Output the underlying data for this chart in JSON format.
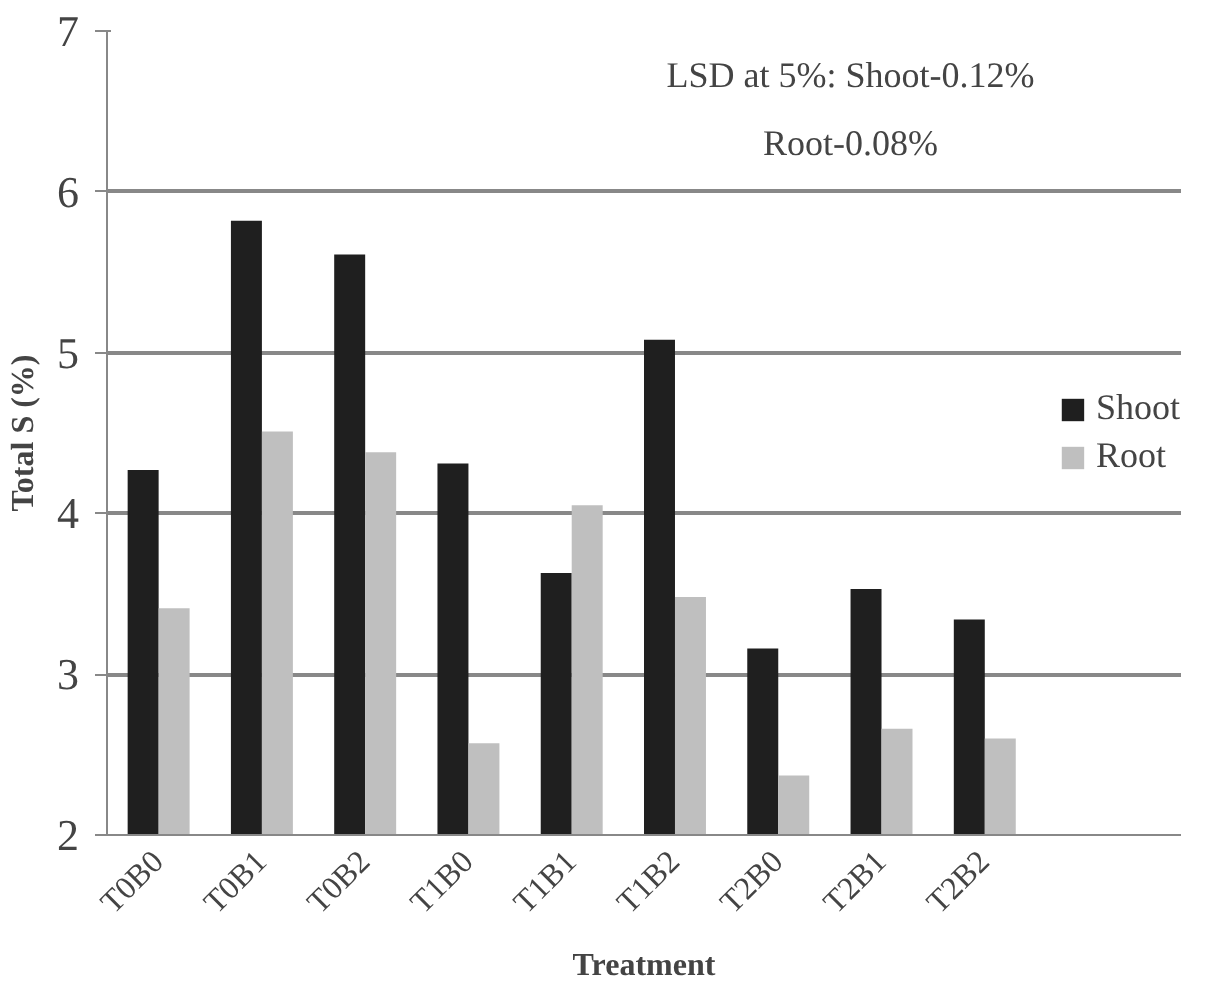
{
  "chart_data": {
    "type": "bar",
    "xlabel": "Treatment",
    "ylabel": "Total S (%)",
    "categories": [
      "T0B0",
      "T0B1",
      "T0B2",
      "T1B0",
      "T1B1",
      "T1B2",
      "T2B0",
      "T2B1",
      "T2B2"
    ],
    "series": [
      {
        "name": "Shoot",
        "color": "#1f1f1f",
        "values": [
          4.27,
          5.82,
          5.61,
          4.31,
          3.63,
          5.08,
          3.16,
          3.53,
          3.34
        ]
      },
      {
        "name": "Root",
        "color": "#bfbfbf",
        "values": [
          3.41,
          4.51,
          4.38,
          2.57,
          4.05,
          3.48,
          2.37,
          2.66,
          2.6
        ]
      }
    ],
    "ylim": [
      2,
      7
    ],
    "yticks": [
      2,
      3,
      4,
      5,
      6,
      7
    ],
    "grid": "y",
    "legend": "right",
    "annotations": [
      "LSD at 5%: Shoot-0.12%",
      "Root-0.08%"
    ]
  }
}
